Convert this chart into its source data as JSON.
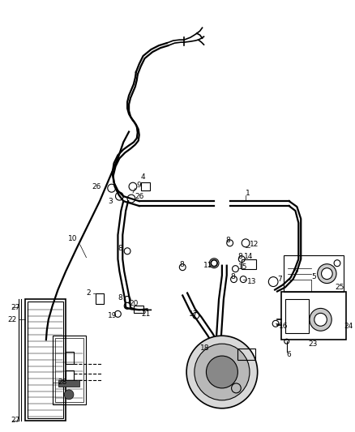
{
  "bg_color": "#ffffff",
  "fig_width": 4.38,
  "fig_height": 5.33,
  "dpi": 100,
  "xmax": 438,
  "ymax": 533
}
